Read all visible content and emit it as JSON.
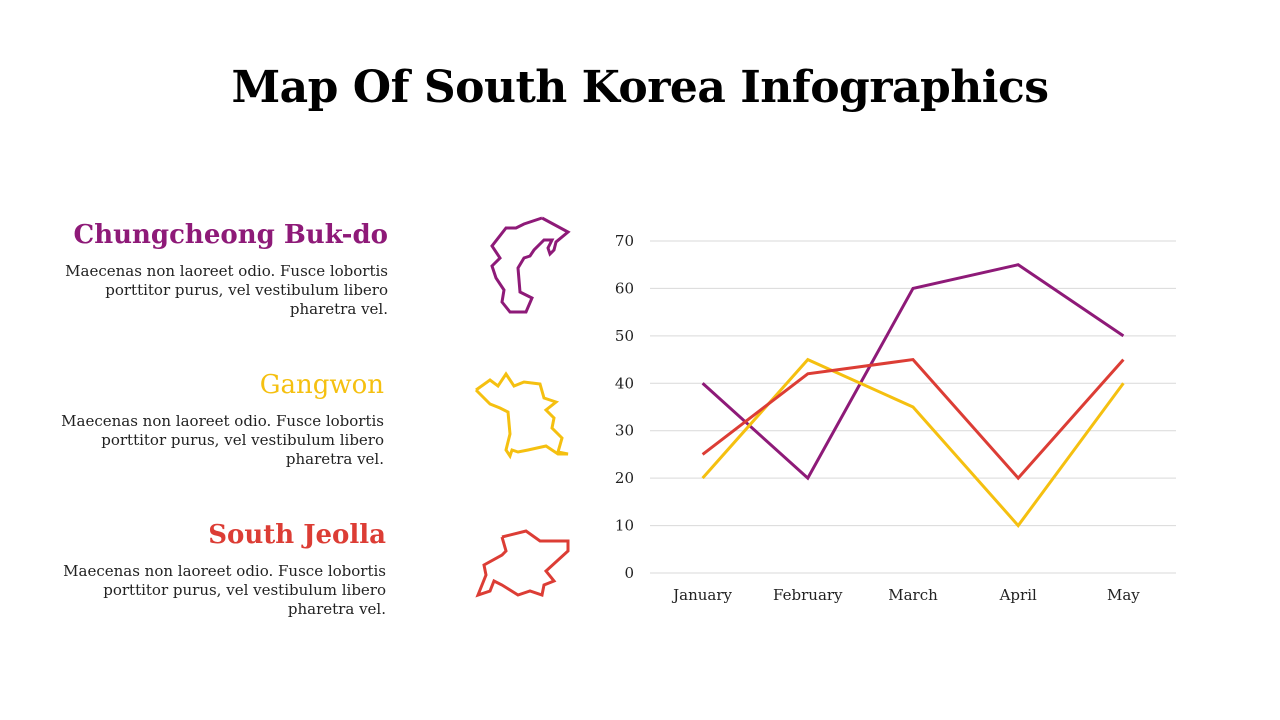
{
  "page": {
    "title": "Map Of South Korea Infographics"
  },
  "regions": [
    {
      "name": "Chungcheong Buk-do",
      "color": "#8e1a78",
      "description": "Maecenas non laoreet odio. Fusce lobortis porttitor purus, vel vestibulum libero pharetra vel.",
      "icon": "chungcheong-buk-do-map-outline"
    },
    {
      "name": "Gangwon",
      "color": "#f5c010",
      "description": "Maecenas non laoreet odio. Fusce lobortis porttitor purus, vel vestibulum libero pharetra vel.",
      "icon": "gangwon-map-outline"
    },
    {
      "name": "South Jeolla",
      "color": "#dc3d35",
      "description": "Maecenas non laoreet odio. Fusce lobortis porttitor purus, vel vestibulum libero pharetra vel.",
      "icon": "south-jeolla-map-outline"
    }
  ],
  "chart_data": {
    "type": "line",
    "categories": [
      "January",
      "February",
      "March",
      "April",
      "May"
    ],
    "series": [
      {
        "color": "#8e1a78",
        "values": [
          40,
          20,
          60,
          65,
          50
        ]
      },
      {
        "color": "#f5c010",
        "values": [
          20,
          45,
          35,
          10,
          40
        ]
      },
      {
        "color": "#dc3d35",
        "values": [
          25,
          42,
          45,
          20,
          45
        ]
      }
    ],
    "ylim": [
      0,
      70
    ],
    "yticks": [
      0,
      10,
      20,
      30,
      40,
      50,
      60,
      70
    ],
    "grid": true,
    "legend": "none"
  }
}
